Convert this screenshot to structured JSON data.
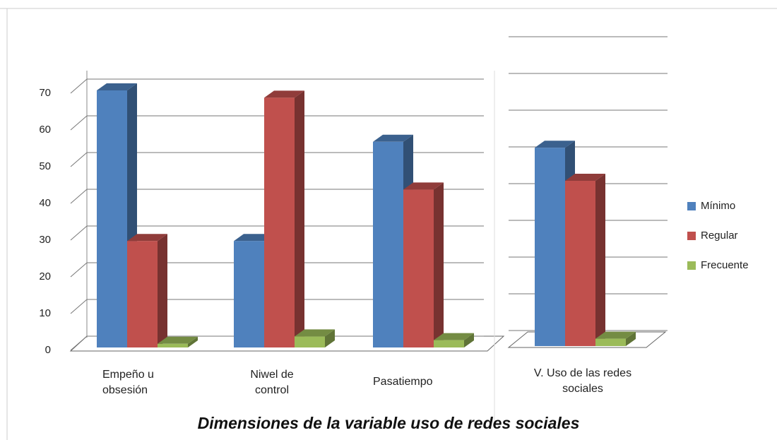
{
  "chart_data": {
    "type": "bar3d",
    "title": "Dimensiones de la variable uso de redes sociales",
    "categories": [
      "Empeño u obsesión",
      "Niwel de control",
      "Pasatiempo",
      "V. Uso de las redes sociales"
    ],
    "series": [
      {
        "name": "Mínimo",
        "color": "#4f81bd",
        "values": [
          70,
          29,
          56,
          54
        ]
      },
      {
        "name": "Regular",
        "color": "#c0504d",
        "values": [
          29,
          68,
          43,
          45
        ]
      },
      {
        "name": "Frecuente",
        "color": "#9bbb59",
        "values": [
          1,
          3,
          2,
          2
        ]
      }
    ],
    "ylim": [
      0,
      70
    ],
    "yticks": [
      0,
      10,
      20,
      30,
      40,
      50,
      60,
      70
    ],
    "grid": true,
    "legend": "right"
  }
}
